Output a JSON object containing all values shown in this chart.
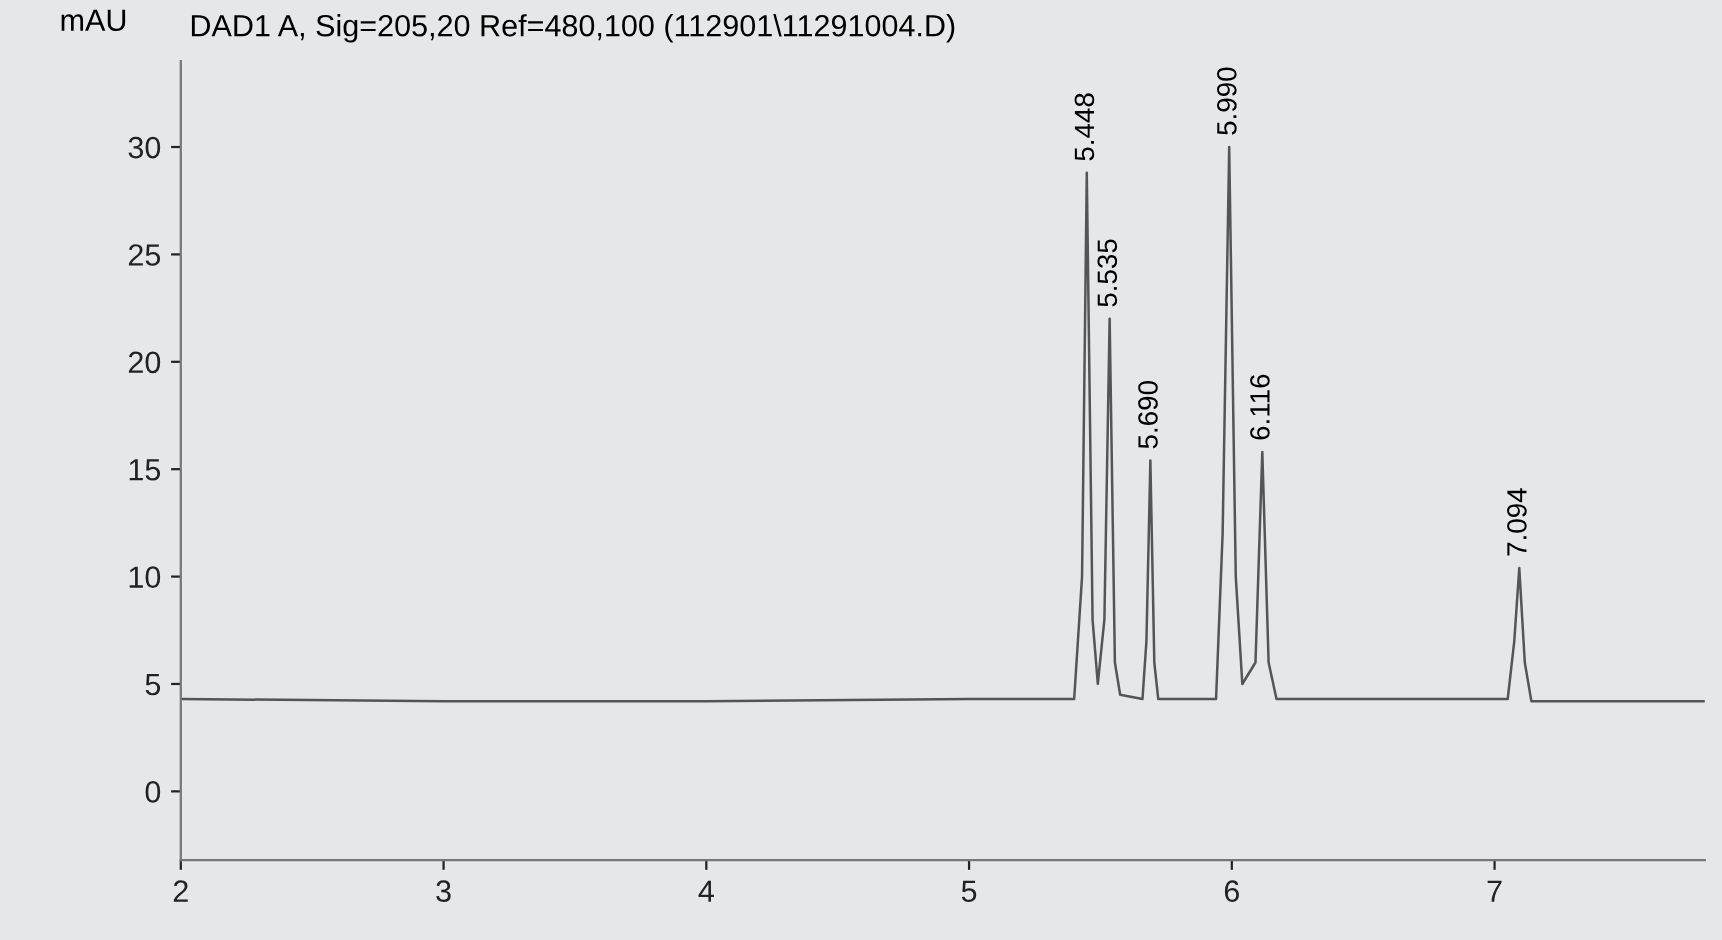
{
  "chart_data": {
    "type": "line",
    "title": "DAD1 A, Sig=205,20 Ref=480,100 (112901\\11291004.D)",
    "ylabel": "mAU",
    "series": [
      {
        "color": "#555555",
        "x": [
          2.0,
          3.0,
          4.0,
          5.0,
          5.4,
          5.43,
          5.448,
          5.47,
          5.49,
          5.515,
          5.535,
          5.555,
          5.575,
          5.66,
          5.675,
          5.69,
          5.705,
          5.72,
          5.94,
          5.965,
          5.99,
          6.015,
          6.04,
          6.09,
          6.116,
          6.14,
          6.17,
          7.05,
          7.075,
          7.094,
          7.115,
          7.14,
          7.8
        ],
        "values": [
          4.3,
          4.2,
          4.2,
          4.3,
          4.3,
          10,
          28.8,
          8,
          5,
          8,
          22.0,
          6,
          4.5,
          4.3,
          7,
          15.4,
          6,
          4.3,
          4.3,
          12,
          30.0,
          10,
          5,
          6,
          15.8,
          6,
          4.3,
          4.3,
          7,
          10.4,
          6,
          4.2,
          4.2
        ]
      }
    ],
    "xlim": [
      2,
      7.8
    ],
    "xticks": [
      2,
      3,
      4,
      5,
      6,
      7
    ],
    "ylim": [
      -3.2,
      34
    ],
    "yticks": [
      0,
      5,
      10,
      15,
      20,
      25,
      30
    ],
    "grid": false,
    "legend": false,
    "marker": "none",
    "line_style": "solid",
    "annotations": [
      {
        "text": "5.448",
        "x": 5.448,
        "y": 28.8
      },
      {
        "text": "5.535",
        "x": 5.535,
        "y": 22.0
      },
      {
        "text": "5.690",
        "x": 5.69,
        "y": 15.4
      },
      {
        "text": "5.990",
        "x": 5.99,
        "y": 30.0
      },
      {
        "text": "6.116",
        "x": 6.116,
        "y": 15.8
      },
      {
        "text": "7.094",
        "x": 7.094,
        "y": 10.4
      }
    ]
  }
}
